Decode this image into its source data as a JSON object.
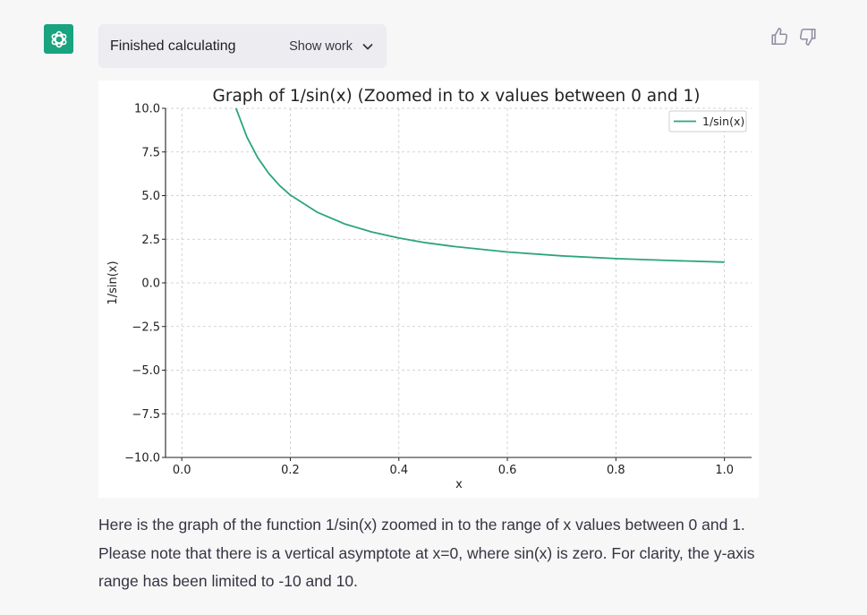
{
  "status": {
    "text": "Finished calculating",
    "show_work_label": "Show work"
  },
  "icons": {
    "avatar": "openai-logo-icon",
    "show_work": "chevron-down-icon",
    "like": "thumbs-up-icon",
    "dislike": "thumbs-down-icon"
  },
  "colors": {
    "brand": "#19a37f",
    "series": "#2ca57a"
  },
  "chart_data": {
    "type": "line",
    "title": "Graph of 1/sin(x) (Zoomed in to x values between 0 and 1)",
    "xlabel": "x",
    "ylabel": "1/sin(x)",
    "xlim": [
      -0.03,
      1.05
    ],
    "ylim": [
      -10,
      10
    ],
    "xticks": [
      0.0,
      0.2,
      0.4,
      0.6,
      0.8,
      1.0
    ],
    "xtick_labels": [
      "0.0",
      "0.2",
      "0.4",
      "0.6",
      "0.8",
      "1.0"
    ],
    "yticks": [
      10,
      7.5,
      5,
      2.5,
      0,
      -2.5,
      -5,
      -7.5,
      -10
    ],
    "ytick_labels": [
      "10.0",
      "7.5",
      "5.0",
      "2.5",
      "0.0",
      "−2.5",
      "−5.0",
      "−7.5",
      "−10.0"
    ],
    "grid": true,
    "legend": "top-right",
    "series": [
      {
        "name": "1/sin(x)",
        "x": [
          0.1,
          0.12,
          0.14,
          0.16,
          0.18,
          0.2,
          0.25,
          0.3,
          0.35,
          0.4,
          0.45,
          0.5,
          0.6,
          0.7,
          0.8,
          0.9,
          1.0
        ],
        "y": [
          10.02,
          8.35,
          7.17,
          6.28,
          5.58,
          5.03,
          4.04,
          3.38,
          2.92,
          2.57,
          2.3,
          2.09,
          1.77,
          1.55,
          1.39,
          1.28,
          1.19
        ]
      }
    ]
  },
  "message": {
    "text": "Here is the graph of the function 1/sin(x) zoomed in to the range of x values between 0 and 1. Please note that there is a vertical asymptote at x=0, where sin(x) is zero. For clarity, the y-axis range has been limited to -10 and 10."
  }
}
